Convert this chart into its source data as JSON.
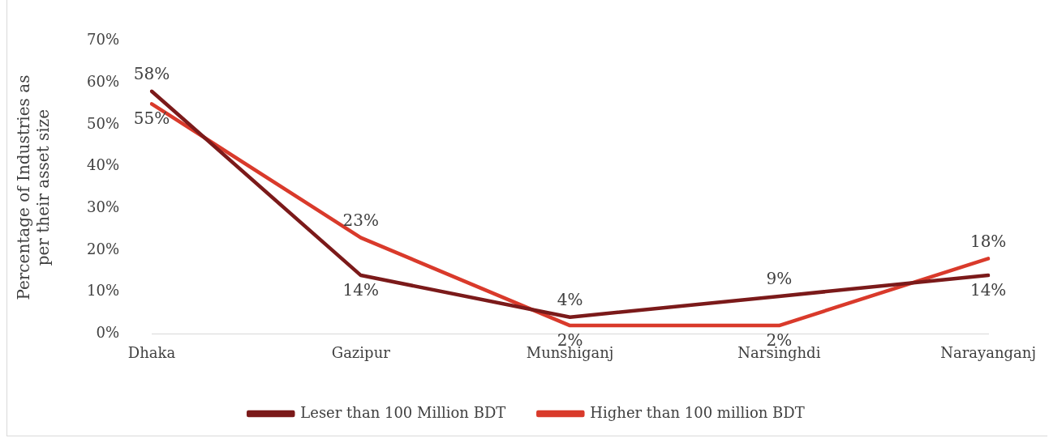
{
  "chart_data": {
    "type": "line",
    "ylabel": "Percentage of Industries as per their asset size",
    "categories": [
      "Dhaka",
      "Gazipur",
      "Munshiganj",
      "Narsinghdi",
      "Narayanganj"
    ],
    "series": [
      {
        "name": "Leser than 100 Million BDT",
        "color": "#7b1a1a",
        "values": [
          58,
          14,
          4,
          9,
          14
        ],
        "value_labels": [
          "58%",
          "14%",
          "4%",
          "9%",
          "14%"
        ]
      },
      {
        "name": "Higher than 100 million BDT",
        "color": "#d93a2b",
        "values": [
          55,
          23,
          2,
          2,
          18
        ],
        "value_labels": [
          "55%",
          "23%",
          "2%",
          "2%",
          "18%"
        ]
      }
    ],
    "ylim": [
      0,
      70
    ],
    "yticks": [
      {
        "value": 0,
        "label": "0%"
      },
      {
        "value": 10,
        "label": "10%"
      },
      {
        "value": 20,
        "label": "20%"
      },
      {
        "value": 30,
        "label": "30%"
      },
      {
        "value": 40,
        "label": "40%"
      },
      {
        "value": 50,
        "label": "50%"
      },
      {
        "value": 60,
        "label": "60%"
      },
      {
        "value": 70,
        "label": "70%"
      }
    ],
    "grid": false,
    "legend": "bottom",
    "marker": "none",
    "line_style": "solid"
  }
}
